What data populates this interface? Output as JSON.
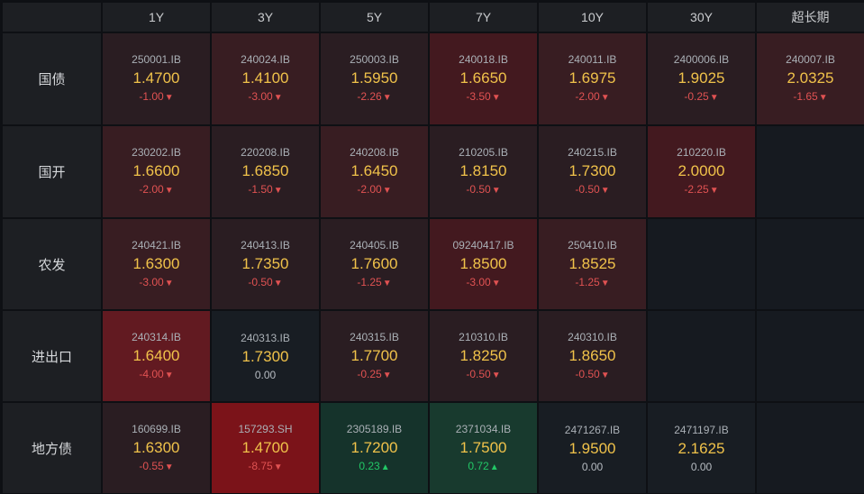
{
  "columns": [
    "1Y",
    "3Y",
    "5Y",
    "7Y",
    "10Y",
    "30Y",
    "超长期"
  ],
  "rows": [
    {
      "label": "国债",
      "cells": [
        {
          "code": "250001.IB",
          "yield": "1.4700",
          "change": "-1.00",
          "dir": "down"
        },
        {
          "code": "240024.IB",
          "yield": "1.4100",
          "change": "-3.00",
          "dir": "down"
        },
        {
          "code": "250003.IB",
          "yield": "1.5950",
          "change": "-2.26",
          "dir": "down"
        },
        {
          "code": "240018.IB",
          "yield": "1.6650",
          "change": "-3.50",
          "dir": "down"
        },
        {
          "code": "240011.IB",
          "yield": "1.6975",
          "change": "-2.00",
          "dir": "down"
        },
        {
          "code": "2400006.IB",
          "yield": "1.9025",
          "change": "-0.25",
          "dir": "down"
        },
        {
          "code": "240007.IB",
          "yield": "2.0325",
          "change": "-1.65",
          "dir": "down"
        }
      ]
    },
    {
      "label": "国开",
      "cells": [
        {
          "code": "230202.IB",
          "yield": "1.6600",
          "change": "-2.00",
          "dir": "down"
        },
        {
          "code": "220208.IB",
          "yield": "1.6850",
          "change": "-1.50",
          "dir": "down"
        },
        {
          "code": "240208.IB",
          "yield": "1.6450",
          "change": "-2.00",
          "dir": "down"
        },
        {
          "code": "210205.IB",
          "yield": "1.8150",
          "change": "-0.50",
          "dir": "down"
        },
        {
          "code": "240215.IB",
          "yield": "1.7300",
          "change": "-0.50",
          "dir": "down"
        },
        {
          "code": "210220.IB",
          "yield": "2.0000",
          "change": "-2.25",
          "dir": "down"
        },
        null
      ]
    },
    {
      "label": "农发",
      "cells": [
        {
          "code": "240421.IB",
          "yield": "1.6300",
          "change": "-3.00",
          "dir": "down"
        },
        {
          "code": "240413.IB",
          "yield": "1.7350",
          "change": "-0.50",
          "dir": "down"
        },
        {
          "code": "240405.IB",
          "yield": "1.7600",
          "change": "-1.25",
          "dir": "down"
        },
        {
          "code": "09240417.IB",
          "yield": "1.8500",
          "change": "-3.00",
          "dir": "down"
        },
        {
          "code": "250410.IB",
          "yield": "1.8525",
          "change": "-1.25",
          "dir": "down"
        },
        null,
        null
      ]
    },
    {
      "label": "进出口",
      "cells": [
        {
          "code": "240314.IB",
          "yield": "1.6400",
          "change": "-4.00",
          "dir": "down"
        },
        {
          "code": "240313.IB",
          "yield": "1.7300",
          "change": "0.00",
          "dir": "flat"
        },
        {
          "code": "240315.IB",
          "yield": "1.7700",
          "change": "-0.25",
          "dir": "down"
        },
        {
          "code": "210310.IB",
          "yield": "1.8250",
          "change": "-0.50",
          "dir": "down"
        },
        {
          "code": "240310.IB",
          "yield": "1.8650",
          "change": "-0.50",
          "dir": "down"
        },
        null,
        null
      ]
    },
    {
      "label": "地方债",
      "cells": [
        {
          "code": "160699.IB",
          "yield": "1.6300",
          "change": "-0.55",
          "dir": "down"
        },
        {
          "code": "157293.SH",
          "yield": "1.4700",
          "change": "-8.75",
          "dir": "down"
        },
        {
          "code": "2305189.IB",
          "yield": "1.7200",
          "change": "0.23",
          "dir": "up"
        },
        {
          "code": "2371034.IB",
          "yield": "1.7500",
          "change": "0.72",
          "dir": "up"
        },
        {
          "code": "2471267.IB",
          "yield": "1.9500",
          "change": "0.00",
          "dir": "flat"
        },
        {
          "code": "2471197.IB",
          "yield": "2.1625",
          "change": "0.00",
          "dir": "flat"
        },
        null
      ]
    }
  ],
  "colors": {
    "yield": "#f0c24a",
    "down": "#e05252",
    "up": "#22c766",
    "header_bg": "#1d1f23"
  },
  "icons": {
    "down": "triangle-down-icon",
    "up": "triangle-up-icon"
  }
}
